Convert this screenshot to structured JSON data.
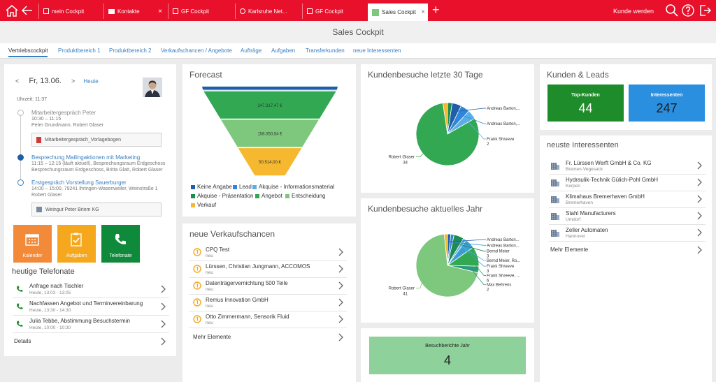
{
  "topbar": {
    "tabs": [
      {
        "label": "mein Cockpit"
      },
      {
        "label": "Kontakte"
      },
      {
        "label": "GF Cockpit"
      },
      {
        "label": "Karlsruhe Net..."
      },
      {
        "label": "GF Cockpit"
      },
      {
        "label": "Sales Cockpit"
      }
    ],
    "close_glyph": "×",
    "plus_glyph": "+",
    "kunde_werden": "Kunde werden",
    "icons": [
      "home-icon",
      "back-arrow-icon",
      "search-icon",
      "help-icon",
      "logout-icon"
    ]
  },
  "page_title": "Sales Cockpit",
  "nav_tabs": [
    "Vertriebscockpit",
    "Produktbereich 1",
    "Produktbereich 2",
    "Verkaufschancen / Angebote",
    "Aufträge",
    "Aufgaben",
    "Transferkunden",
    "neue Interessenten"
  ],
  "cockpit": {
    "prev": "<",
    "date": "Fr, 13.06.",
    "next": ">",
    "today": "Heute",
    "time": "Uhrzeit: 11:37",
    "appointments": [
      {
        "title": "Mitarbeitergespräch Peter",
        "line1": "10:30 – 11:15",
        "line2": "Peter Grundmann,  Robert Glaser"
      },
      {
        "title": "Besprechung Mailingaktionen mit Marketing",
        "line1": "11:15 – 12:15 (läuft aktuell), Besprechungsraum Erdgeschoss",
        "line2": "Besprechungsraum Erdgeschoss,  Britta Glatt,  Robert Glaser"
      },
      {
        "title": "Erstgespräch Vorstellung Sauerburger",
        "line1": "14:00 – 15:00, 79241 Ihringen-Wasenweiler, Weinstraße 1",
        "line2": "Robert Glaser"
      }
    ],
    "attachments": [
      "Mitarbeitergespräch_Vorlagebogen",
      "Weingut Peter Briem KG"
    ],
    "tiles": [
      "Kalender",
      "Aufgaben",
      "Telefonate"
    ],
    "calls_title": "heutige Telefonate",
    "calls": [
      {
        "title": "Anfrage nach Tischler",
        "sub": "Heute, 13:03 - 13:05"
      },
      {
        "title": "Nachfassen Angebot und Terminvereinbarung",
        "sub": "Heute, 13:30 - 14:30"
      },
      {
        "title": "Julia Tebbe, Abstimmung Besuchstermin",
        "sub": "Heute, 10:00 - 10:30"
      }
    ],
    "details": "Details"
  },
  "forecast": {
    "title": "Forecast",
    "legend": [
      {
        "label": "Keine Angabe",
        "color": "#1e5fa8"
      },
      {
        "label": "Lead",
        "color": "#2f86d6"
      },
      {
        "label": "Akquise - Informationsmaterial",
        "color": "#5aaee6"
      },
      {
        "label": "Akquise - Präsentation",
        "color": "#1e8c4e"
      },
      {
        "label": "Angebot",
        "color": "#33a852"
      },
      {
        "label": "Entscheidung",
        "color": "#7ec87e"
      },
      {
        "label": "Verkauf",
        "color": "#f5b82e"
      }
    ]
  },
  "chart_data": [
    {
      "type": "funnel",
      "title": "Forecast",
      "categories": [
        "Angebot",
        "Entscheidung",
        "Verkauf"
      ],
      "values": [
        247317.47,
        158050.54,
        50514.0
      ],
      "value_labels": [
        "247.317,47 €",
        "158.050,54 €",
        "50.514,00 €"
      ],
      "colors": [
        "#33a852",
        "#7ec87e",
        "#f5b82e"
      ]
    },
    {
      "type": "pie",
      "title": "Kundenbesuche letzte 30 Tage",
      "slices": [
        {
          "label": "Robert Glaser",
          "value": 34,
          "color": "#33a852",
          "show_value": true
        },
        {
          "label": "",
          "value": 1,
          "color": "#f5b82e"
        },
        {
          "label": "",
          "value": 1,
          "color": "#1e8c4e"
        },
        {
          "label": "Andreas Barton,...",
          "value": 2,
          "color": "#1e5fa8"
        },
        {
          "label": "Andreas Barton,...",
          "value": 2,
          "color": "#2f86d6"
        },
        {
          "label": "Frank Shreeve",
          "value": 2,
          "color": "#5aaee6",
          "show_value": true
        }
      ]
    },
    {
      "type": "pie",
      "title": "Kundenbesuche aktuelles Jahr",
      "slices": [
        {
          "label": "Robert Glaser",
          "value": 41,
          "color": "#7ec87e",
          "show_value": true
        },
        {
          "label": "",
          "value": 1,
          "color": "#f5b82e"
        },
        {
          "label": "Andreas Barton...",
          "value": 1,
          "color": "#1e5fa8"
        },
        {
          "label": "Andreas Barton...",
          "value": 1,
          "color": "#2f86d6"
        },
        {
          "label": "Bernd Meier",
          "value": 3,
          "color": "#1e8c4e",
          "show_value": true
        },
        {
          "label": "Bernd Meier, Ro...",
          "value": 1,
          "color": "#5aaee6"
        },
        {
          "label": "Frank Shreeve",
          "value": 3,
          "color": "#3a9fd0",
          "show_value": true
        },
        {
          "label": "Frank Shreeve, ...",
          "value": 6,
          "color": "#33a852",
          "show_value": true
        },
        {
          "label": "Max Behrens",
          "value": 2,
          "color": "#2e9a7a",
          "show_value": true
        }
      ]
    }
  ],
  "pie1_title": "Kundenbesuche letzte 30 Tage",
  "pie2_title": "Kundenbesuche aktuelles Jahr",
  "opportunities": {
    "title": "neue Verkaufschancen",
    "items": [
      {
        "title": "CPQ Test",
        "sub": "neu"
      },
      {
        "title": "Lürssen, Christian Jungmann, ACCOMOS",
        "sub": "neu"
      },
      {
        "title": "Datenträgervernichtung 500 Teile",
        "sub": "neu"
      },
      {
        "title": "Remus Innovation GmbH",
        "sub": "neu"
      },
      {
        "title": "Otto Zimmermann, Sensorik Fluid",
        "sub": "neu"
      }
    ],
    "more": "Mehr Elemente"
  },
  "leads": {
    "title": "Kunden & Leads",
    "top_label": "Top-Kunden",
    "top_value": "44",
    "top_color": "#1e8c2a",
    "int_label": "Interessenten",
    "int_value": "247",
    "int_color": "#2b8fe0"
  },
  "prospects": {
    "title": "neuste Interessenten",
    "items": [
      {
        "title": "Fr. Lürssen Werft GmbH & Co. KG",
        "sub": "Bremen-Vegesack"
      },
      {
        "title": "Hydraulik-Technik Gülich-Pohl GmbH",
        "sub": "Kerpen"
      },
      {
        "title": "Klimahaus Bremerhaven GmbH",
        "sub": "Bremerhaven"
      },
      {
        "title": "Stahl Manufacturers",
        "sub": "Umdorf"
      },
      {
        "title": "Zeller Automaten",
        "sub": "Hannover"
      }
    ],
    "more": "Mehr Elemente"
  },
  "reports": {
    "label": "Besuchberichte Jahr",
    "value": "4",
    "color": "#8fd19a"
  }
}
